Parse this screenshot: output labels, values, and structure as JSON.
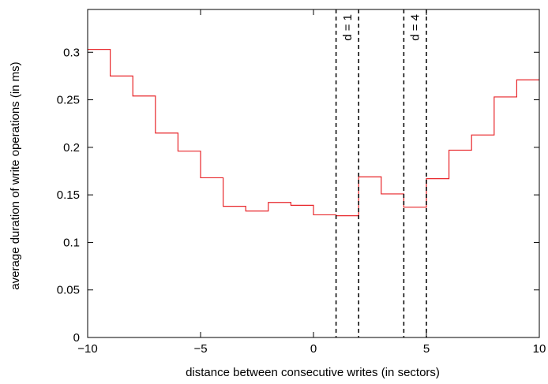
{
  "chart_data": {
    "type": "line",
    "step": true,
    "xlabel": "distance between consecutive writes (in sectors)",
    "ylabel": "average duration of write operations (in ms)",
    "xlim": [
      -10,
      10
    ],
    "ylim": [
      0,
      0.345
    ],
    "xticks": [
      -10,
      -5,
      0,
      5,
      10
    ],
    "xtick_labels": [
      "−10",
      "−5",
      "0",
      "5",
      "10"
    ],
    "yticks": [
      0,
      0.05,
      0.1,
      0.15,
      0.2,
      0.25,
      0.3
    ],
    "ytick_labels": [
      "0",
      "0.05",
      "0.1",
      "0.15",
      "0.2",
      "0.25",
      "0.3"
    ],
    "grid": false,
    "series": [
      {
        "color": "#e8262a",
        "bins": [
          {
            "x0": -10,
            "x1": -9,
            "y": 0.303
          },
          {
            "x0": -9,
            "x1": -8,
            "y": 0.275
          },
          {
            "x0": -8,
            "x1": -7,
            "y": 0.254
          },
          {
            "x0": -7,
            "x1": -6,
            "y": 0.215
          },
          {
            "x0": -6,
            "x1": -5,
            "y": 0.196
          },
          {
            "x0": -5,
            "x1": -4,
            "y": 0.168
          },
          {
            "x0": -4,
            "x1": -3,
            "y": 0.138
          },
          {
            "x0": -3,
            "x1": -2,
            "y": 0.133
          },
          {
            "x0": -2,
            "x1": -1,
            "y": 0.142
          },
          {
            "x0": -1,
            "x1": 0,
            "y": 0.139
          },
          {
            "x0": 0,
            "x1": 1,
            "y": 0.129
          },
          {
            "x0": 1,
            "x1": 2,
            "y": 0.128
          },
          {
            "x0": 2,
            "x1": 3,
            "y": 0.169
          },
          {
            "x0": 3,
            "x1": 4,
            "y": 0.151
          },
          {
            "x0": 4,
            "x1": 5,
            "y": 0.137
          },
          {
            "x0": 5,
            "x1": 6,
            "y": 0.167
          },
          {
            "x0": 6,
            "x1": 7,
            "y": 0.197
          },
          {
            "x0": 7,
            "x1": 8,
            "y": 0.213
          },
          {
            "x0": 8,
            "x1": 9,
            "y": 0.253
          },
          {
            "x0": 9,
            "x1": 10,
            "y": 0.271
          }
        ]
      }
    ],
    "annotations": [
      {
        "label": "d = 1",
        "x_range": [
          1,
          2
        ],
        "style": "dashed"
      },
      {
        "label": "d = 4",
        "x_range": [
          4,
          5
        ],
        "style": "dashed"
      }
    ]
  }
}
